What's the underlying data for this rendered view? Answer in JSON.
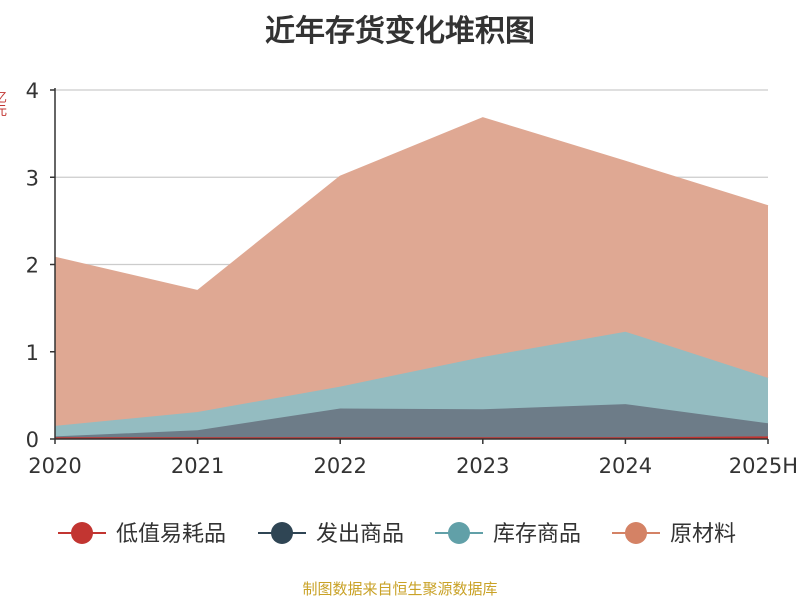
{
  "chart_data": {
    "type": "area",
    "stacked": true,
    "title": "近年存货变化堆积图",
    "ylabel": "亿元",
    "x": [
      "2020",
      "2021",
      "2022",
      "2023",
      "2024",
      "2025H"
    ],
    "ylim": [
      0,
      4
    ],
    "yticks": [
      0,
      1,
      2,
      3,
      4
    ],
    "grid": true,
    "legend_position": "bottom",
    "series": [
      {
        "name": "低值易耗品",
        "color": "#c23531",
        "fill": "#c23531",
        "values": [
          0.02,
          0.02,
          0.02,
          0.02,
          0.02,
          0.03
        ]
      },
      {
        "name": "发出商品",
        "color": "#2f4554",
        "fill": "#6d7c88",
        "values": [
          0.01,
          0.08,
          0.33,
          0.32,
          0.38,
          0.15
        ]
      },
      {
        "name": "库存商品",
        "color": "#61a0a8",
        "fill": "#94bcc1",
        "values": [
          0.12,
          0.21,
          0.25,
          0.6,
          0.83,
          0.52
        ]
      },
      {
        "name": "原材料",
        "color": "#d48265",
        "fill": "#dfa893",
        "values": [
          1.93,
          1.39,
          2.41,
          2.74,
          1.95,
          1.97
        ]
      }
    ]
  },
  "footer": {
    "source": "制图数据来自恒生聚源数据库"
  }
}
